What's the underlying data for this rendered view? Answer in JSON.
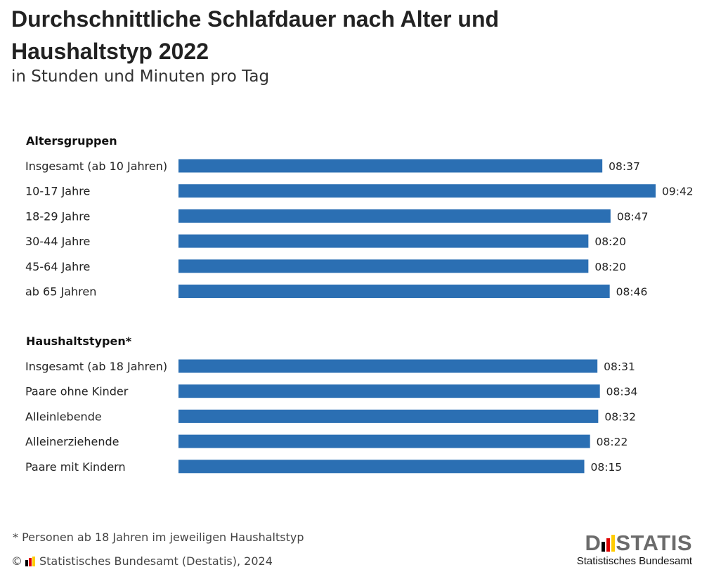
{
  "chart_data": {
    "type": "bar",
    "orientation": "horizontal",
    "title": "Durchschnittliche Schlafdauer nach Alter und Haushaltstyp 2022",
    "subtitle": "in Stunden und Minuten pro Tag",
    "unit": "hh:mm",
    "groups": [
      {
        "label": "Altersgruppen",
        "categories": [
          "Insgesamt (ab 10 Jahren)",
          "10-17 Jahre",
          "18-29 Jahre",
          "30-44 Jahre",
          "45-64 Jahre",
          "ab 65 Jahren"
        ],
        "values": [
          "08:37",
          "09:42",
          "08:47",
          "08:20",
          "08:20",
          "08:46"
        ]
      },
      {
        "label": "Haushaltstypen*",
        "categories": [
          "Insgesamt (ab 18 Jahren)",
          "Paare ohne Kinder",
          "Alleinlebende",
          "Alleinerziehende",
          "Paare mit Kindern"
        ],
        "values": [
          "08:31",
          "08:34",
          "08:32",
          "08:22",
          "08:15"
        ]
      }
    ],
    "bar_color": "#2b6fb3",
    "grid": false,
    "legend": "none"
  },
  "footnote": "* Personen ab 18 Jahren im jeweiligen Haushaltstyp",
  "source": {
    "prefix": "©",
    "text": "Statistisches Bundesamt (Destatis), 2024"
  },
  "logo": {
    "word_left": "D",
    "word_right": "STATIS",
    "sub": "Statistisches Bundesamt",
    "flag_colors": [
      "#000000",
      "#dd0000",
      "#ffcc00"
    ]
  }
}
